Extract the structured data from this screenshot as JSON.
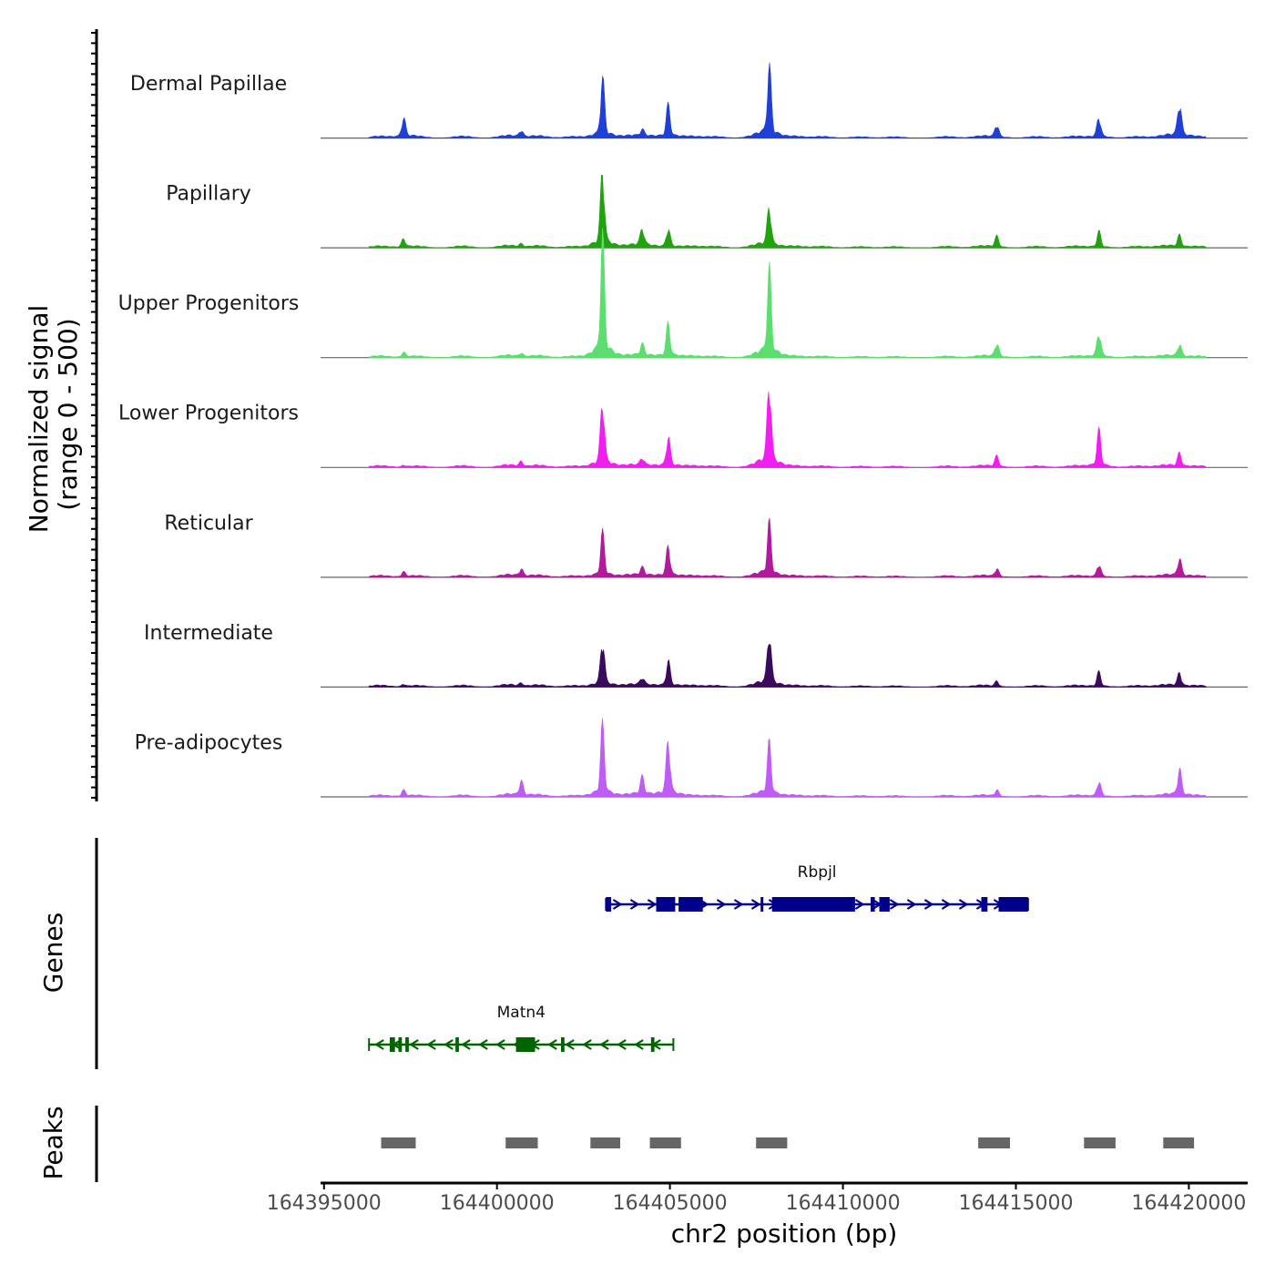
{
  "chart_data": {
    "type": "genome-browser-tracks",
    "chromosome": "chr2",
    "xlim": [
      164394900,
      164421700
    ],
    "x_axis": {
      "title": "chr2 position (bp)",
      "ticks": [
        164395000,
        164400000,
        164405000,
        164410000,
        164415000,
        164420000
      ],
      "tick_labels": [
        "164395000",
        "164400000",
        "164405000",
        "164410000",
        "164415000",
        "164420000"
      ]
    },
    "coverage": {
      "ylabel_line1": "Normalized signal",
      "ylabel_line2": "(range 0 - 500)",
      "ylim": [
        0,
        500
      ],
      "background": [
        {
          "x": 164396600,
          "h": 6
        },
        {
          "x": 164397700,
          "h": 5
        },
        {
          "x": 164399000,
          "h": 6
        },
        {
          "x": 164400300,
          "h": 8
        },
        {
          "x": 164401200,
          "h": 7
        },
        {
          "x": 164402200,
          "h": 5
        },
        {
          "x": 164403800,
          "h": 7
        },
        {
          "x": 164404300,
          "h": 6
        },
        {
          "x": 164405600,
          "h": 6
        },
        {
          "x": 164406300,
          "h": 5
        },
        {
          "x": 164407500,
          "h": 7
        },
        {
          "x": 164408600,
          "h": 6
        },
        {
          "x": 164409400,
          "h": 5
        },
        {
          "x": 164410500,
          "h": 4
        },
        {
          "x": 164411500,
          "h": 4
        },
        {
          "x": 164413000,
          "h": 5
        },
        {
          "x": 164414000,
          "h": 6
        },
        {
          "x": 164415600,
          "h": 5
        },
        {
          "x": 164416700,
          "h": 6
        },
        {
          "x": 164418500,
          "h": 5
        },
        {
          "x": 164419300,
          "h": 7
        },
        {
          "x": 164420300,
          "h": 5
        }
      ],
      "peak_positions": [
        164397300,
        164400700,
        164403050,
        164404200,
        164404950,
        164407870,
        164414450,
        164417400,
        164419730
      ],
      "series": [
        {
          "name": "Dermal Papillae",
          "color": "#1f3fd6",
          "peaks": [
            160,
            55,
            480,
            50,
            260,
            560,
            110,
            170,
            290
          ]
        },
        {
          "name": "Papillary",
          "color": "#21a30f",
          "peaks": [
            70,
            25,
            640,
            140,
            160,
            340,
            90,
            130,
            95
          ]
        },
        {
          "name": "Upper Progenitors",
          "color": "#5bde6e",
          "peaks": [
            40,
            30,
            950,
            90,
            270,
            690,
            120,
            210,
            110
          ]
        },
        {
          "name": "Lower Progenitors",
          "color": "#f01ff0",
          "peaks": [
            15,
            40,
            560,
            60,
            250,
            720,
            90,
            290,
            110
          ]
        },
        {
          "name": "Reticular",
          "color": "#b3199c",
          "peaks": [
            40,
            60,
            350,
            60,
            250,
            420,
            70,
            110,
            150
          ]
        },
        {
          "name": "Intermediate",
          "color": "#3a0a5e",
          "peaks": [
            20,
            25,
            400,
            60,
            210,
            450,
            45,
            120,
            110
          ]
        },
        {
          "name": "Pre-adipocytes",
          "color": "#bf5cf5",
          "peaks": [
            50,
            120,
            560,
            140,
            470,
            420,
            55,
            130,
            220
          ]
        }
      ]
    },
    "genes": {
      "title": "Genes",
      "items": [
        {
          "name": "Rbpjl",
          "strand": "+",
          "color": "#00008b",
          "start": 164403150,
          "end": 164415350,
          "exons": [
            [
              164403150,
              164403300
            ],
            [
              164404600,
              164405150
            ],
            [
              164405250,
              164405950
            ],
            [
              164407620,
              164407660
            ],
            [
              164407950,
              164408550
            ],
            [
              164408550,
              164410350
            ],
            [
              164410800,
              164410920
            ],
            [
              164411050,
              164411350
            ],
            [
              164414000,
              164414180
            ],
            [
              164414500,
              164415350
            ]
          ]
        },
        {
          "name": "Matn4",
          "strand": "-",
          "color": "#006400",
          "start": 164396300,
          "end": 164405100,
          "exons": [
            [
              164396900,
              164397050
            ],
            [
              164397150,
              164397250
            ],
            [
              164397350,
              164397450
            ],
            [
              164398800,
              164398900
            ],
            [
              164400550,
              164401100
            ],
            [
              164401850,
              164401950
            ],
            [
              164404450,
              164404550
            ]
          ]
        }
      ]
    },
    "peaks_track": {
      "title": "Peaks",
      "regions": [
        [
          164396650,
          164397650
        ],
        [
          164400250,
          164401180
        ],
        [
          164402700,
          164403560
        ],
        [
          164404420,
          164405320
        ],
        [
          164407490,
          164408390
        ],
        [
          164413910,
          164414830
        ],
        [
          164416970,
          164417880
        ],
        [
          164419260,
          164420150
        ]
      ]
    },
    "colors": {
      "axis": "#000000",
      "peak_box": "#666666",
      "baseline": "#666666"
    }
  }
}
